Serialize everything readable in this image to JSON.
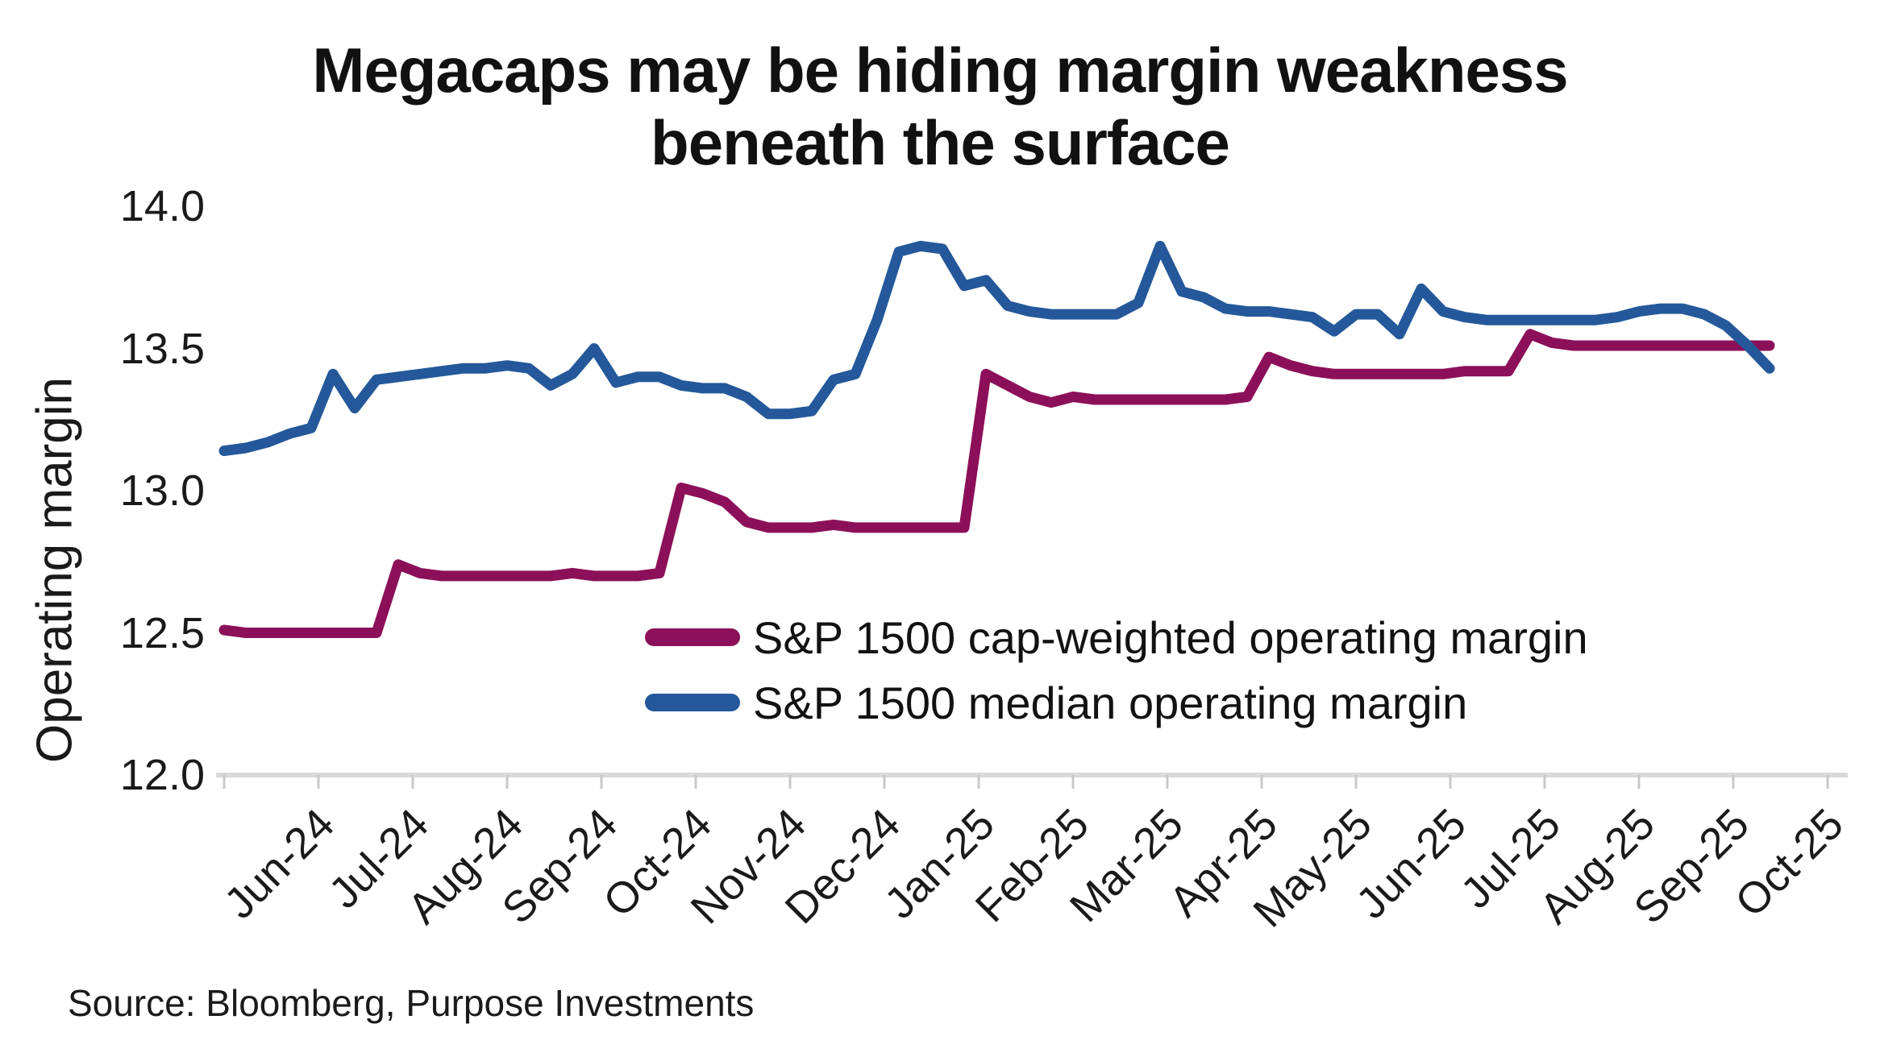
{
  "title": {
    "line1": "Megacaps may be hiding margin weakness",
    "line2": "beneath the surface"
  },
  "source_note": "Source: Bloomberg, Purpose Investments",
  "chart_data": {
    "type": "line",
    "title": "Megacaps may be hiding margin weakness beneath the surface",
    "xlabel": "",
    "ylabel": "Operating margin",
    "ylim": [
      12.0,
      14.0
    ],
    "grid": false,
    "legend_position": "inside-lower-center",
    "x_frequency": "weekly",
    "x_tick_labels": [
      "Jun-24",
      "Jul-24",
      "Aug-24",
      "Sep-24",
      "Oct-24",
      "Nov-24",
      "Dec-24",
      "Jan-25",
      "Feb-25",
      "Mar-25",
      "Apr-25",
      "May-25",
      "Jun-25",
      "Jul-25",
      "Aug-25",
      "Sep-25",
      "Oct-25"
    ],
    "y_tick_labels": [
      "14.0",
      "13.5",
      "13.0",
      "12.5",
      "12.0"
    ],
    "y_tick_values": [
      14.0,
      13.5,
      13.0,
      12.5,
      12.0
    ],
    "axis_color": "#D9D9D9",
    "tick_color": "#C8C8C8",
    "series": [
      {
        "name": "S&P 1500 cap-weighted operating margin",
        "color": "#8C1059",
        "values": [
          12.51,
          12.5,
          12.5,
          12.5,
          12.5,
          12.5,
          12.5,
          12.5,
          12.74,
          12.71,
          12.7,
          12.7,
          12.7,
          12.7,
          12.7,
          12.7,
          12.71,
          12.7,
          12.7,
          12.7,
          12.71,
          13.01,
          12.99,
          12.96,
          12.89,
          12.87,
          12.87,
          12.87,
          12.88,
          12.87,
          12.87,
          12.87,
          12.87,
          12.87,
          12.87,
          13.41,
          13.37,
          13.33,
          13.31,
          13.33,
          13.32,
          13.32,
          13.32,
          13.32,
          13.32,
          13.32,
          13.32,
          13.33,
          13.47,
          13.44,
          13.42,
          13.41,
          13.41,
          13.41,
          13.41,
          13.41,
          13.41,
          13.42,
          13.42,
          13.42,
          13.55,
          13.52,
          13.51,
          13.51,
          13.51,
          13.51,
          13.51,
          13.51,
          13.51,
          13.51,
          13.51,
          13.51
        ]
      },
      {
        "name": "S&P 1500 median operating margin",
        "color": "#24589A",
        "values": [
          13.14,
          13.15,
          13.17,
          13.2,
          13.22,
          13.41,
          13.29,
          13.39,
          13.4,
          13.41,
          13.42,
          13.43,
          13.43,
          13.44,
          13.43,
          13.37,
          13.41,
          13.5,
          13.38,
          13.4,
          13.4,
          13.37,
          13.36,
          13.36,
          13.33,
          13.27,
          13.27,
          13.28,
          13.39,
          13.41,
          13.6,
          13.84,
          13.86,
          13.85,
          13.72,
          13.74,
          13.65,
          13.63,
          13.62,
          13.62,
          13.62,
          13.62,
          13.66,
          13.86,
          13.7,
          13.68,
          13.64,
          13.63,
          13.63,
          13.62,
          13.61,
          13.56,
          13.62,
          13.62,
          13.55,
          13.71,
          13.63,
          13.61,
          13.6,
          13.6,
          13.6,
          13.6,
          13.6,
          13.6,
          13.61,
          13.63,
          13.64,
          13.64,
          13.62,
          13.58,
          13.51,
          13.43
        ]
      }
    ]
  }
}
